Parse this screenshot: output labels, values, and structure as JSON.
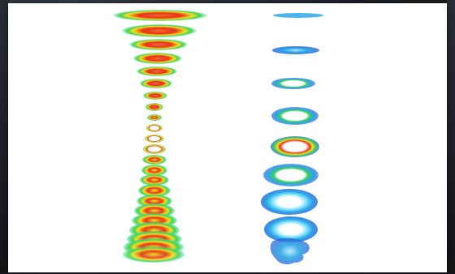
{
  "image": {
    "description_colors": {
      "background": "#ffffff",
      "frame": "#1e2126",
      "hot": "#e8321e",
      "warm": "#f3e21a",
      "mid": "#3fd05a",
      "cool": "#2aa8e6",
      "cold": "#1f63d9"
    },
    "left_stack": {
      "ring_count": 26
    },
    "right_stack": {
      "ring_count": 9
    }
  }
}
